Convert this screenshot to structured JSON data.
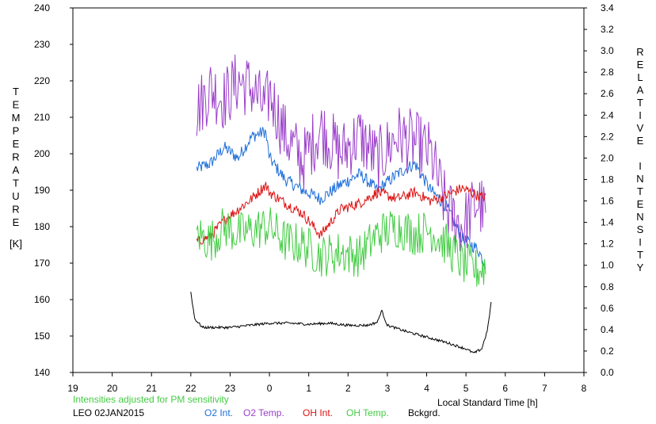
{
  "chart_data": {
    "type": "line",
    "left_axis": {
      "label_letters": [
        "T",
        "E",
        "M",
        "P",
        "E",
        "R",
        "A",
        "T",
        "U",
        "R",
        "E"
      ],
      "unit": "[K]",
      "ticks": [
        "140",
        "150",
        "160",
        "170",
        "180",
        "190",
        "200",
        "210",
        "220",
        "230",
        "240"
      ],
      "range": [
        140,
        240
      ]
    },
    "right_axis": {
      "label_letters": [
        "R",
        "E",
        "L",
        "A",
        "T",
        "I",
        "V",
        "E",
        "",
        "I",
        "N",
        "T",
        "E",
        "N",
        "S",
        "I",
        "T",
        "Y"
      ],
      "ticks": [
        "0.0",
        "0.2",
        "0.4",
        "0.6",
        "0.8",
        "1.0",
        "1.2",
        "1.4",
        "1.6",
        "1.8",
        "2.0",
        "2.2",
        "2.4",
        "2.6",
        "2.8",
        "3.0",
        "3.2",
        "3.4"
      ],
      "range": [
        0.0,
        3.4
      ]
    },
    "x_axis": {
      "label": "Local Standard Time [h]",
      "ticks": [
        "19",
        "20",
        "21",
        "22",
        "23",
        "0",
        "1",
        "2",
        "3",
        "4",
        "5",
        "6",
        "7",
        "8"
      ]
    },
    "note": "Intensities adjusted for PM sensitivity",
    "station": "LEO 02JAN2015",
    "series": [
      {
        "name": "O2 Int.",
        "color": "#1e6fd9",
        "axis": "right",
        "x": [
          22.15,
          22.5,
          22.85,
          23.2,
          23.55,
          23.9,
          24.0,
          24.4,
          24.85,
          25.3,
          25.8,
          26.3,
          26.75,
          27.25,
          27.7,
          28.1,
          28.5,
          28.9,
          29.3,
          29.5
        ],
        "y": [
          1.9,
          1.95,
          2.1,
          2.0,
          2.2,
          2.25,
          2.0,
          1.8,
          1.7,
          1.62,
          1.75,
          1.85,
          1.7,
          1.85,
          1.95,
          1.7,
          1.55,
          1.25,
          1.15,
          1.0
        ]
      },
      {
        "name": "O2 Temp.",
        "color": "#9a3fc9",
        "axis": "left",
        "x": [
          22.15,
          22.5,
          22.85,
          23.2,
          23.55,
          23.9,
          24.0,
          24.4,
          24.85,
          25.3,
          25.8,
          26.3,
          26.75,
          27.25,
          27.7,
          28.1,
          28.5,
          28.9,
          29.3,
          29.5
        ],
        "y": [
          212,
          218,
          215,
          220,
          218,
          212,
          217,
          205,
          198,
          207,
          200,
          205,
          198,
          205,
          203,
          200,
          185,
          180,
          187,
          183
        ]
      },
      {
        "name": "OH Int.",
        "color": "#dd1111",
        "axis": "right",
        "x": [
          22.15,
          22.5,
          22.85,
          23.2,
          23.55,
          23.9,
          24.0,
          24.4,
          24.85,
          25.3,
          25.8,
          26.3,
          26.75,
          27.25,
          27.7,
          28.1,
          28.5,
          28.9,
          29.3,
          29.5
        ],
        "y": [
          1.22,
          1.27,
          1.42,
          1.52,
          1.62,
          1.75,
          1.68,
          1.58,
          1.48,
          1.28,
          1.52,
          1.58,
          1.68,
          1.62,
          1.68,
          1.6,
          1.65,
          1.72,
          1.65,
          1.63
        ]
      },
      {
        "name": "OH Temp.",
        "color": "#44cc44",
        "axis": "left",
        "x": [
          22.15,
          22.5,
          22.85,
          23.2,
          23.55,
          23.9,
          24.0,
          24.4,
          24.85,
          25.3,
          25.8,
          26.3,
          26.75,
          27.25,
          27.7,
          28.1,
          28.5,
          28.9,
          29.3,
          29.5
        ],
        "y": [
          178,
          176,
          180,
          178,
          179,
          180,
          180,
          176,
          175,
          172,
          173,
          172,
          178,
          180,
          178,
          179,
          175,
          170,
          168,
          169
        ]
      },
      {
        "name": "Bckgrd.",
        "color": "#000000",
        "axis": "right",
        "x": [
          22.0,
          22.1,
          22.3,
          22.6,
          23.0,
          23.5,
          24.0,
          24.5,
          25.0,
          25.5,
          26.0,
          26.5,
          26.75,
          26.85,
          27.0,
          27.5,
          28.0,
          28.5,
          29.0,
          29.2,
          29.4,
          29.55,
          29.65
        ],
        "y": [
          0.75,
          0.5,
          0.42,
          0.42,
          0.42,
          0.44,
          0.46,
          0.46,
          0.45,
          0.46,
          0.44,
          0.44,
          0.47,
          0.58,
          0.44,
          0.38,
          0.33,
          0.28,
          0.22,
          0.18,
          0.22,
          0.4,
          0.68
        ]
      }
    ]
  },
  "footer": {
    "note": "Intensities adjusted for PM sensitivity",
    "station": "LEO 02JAN2015",
    "legend": [
      "O2 Int.",
      "O2 Temp.",
      "OH Int.",
      "OH Temp.",
      "Bckgrd."
    ]
  }
}
